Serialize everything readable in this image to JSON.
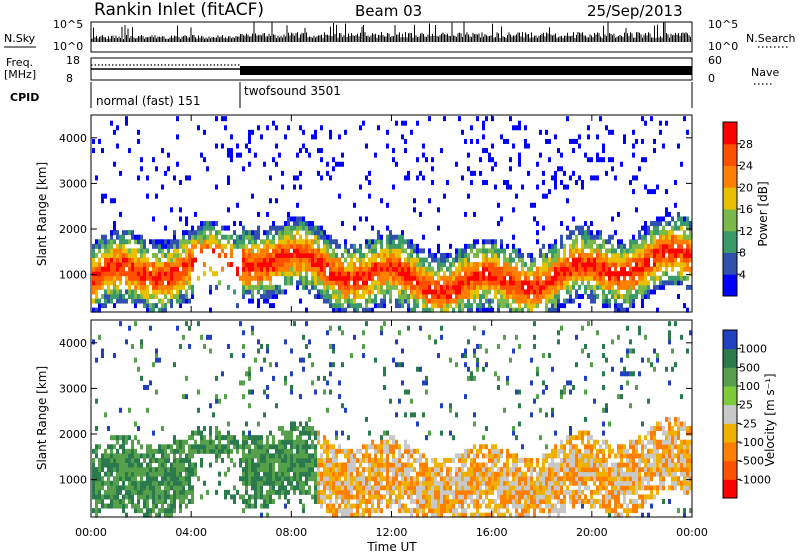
{
  "header": {
    "title": "Rankin Inlet (fitACF)",
    "beam": "Beam 03",
    "date": "25/Sep/2013"
  },
  "top_panels": {
    "nsky_label": "N.Sky",
    "nsky_ticks": [
      "10^5",
      "10^0"
    ],
    "nsearch_label": "N.Search",
    "freq_label_1": "Freq.",
    "freq_label_2": "[MHz]",
    "freq_ticks": [
      "18",
      "8"
    ],
    "nave_label": "Nave",
    "nave_ticks": [
      "60",
      "0"
    ],
    "cpid_label": "CPID",
    "cpid_modes": [
      {
        "label": "normal (fast) 151",
        "start_hour": 0,
        "end_hour": 6
      },
      {
        "label": "twofsound 3501",
        "start_hour": 6,
        "end_hour": 24
      }
    ]
  },
  "colors": {
    "power": [
      "#0000ff",
      "#3050b0",
      "#3a9a6a",
      "#7ab84a",
      "#e8c000",
      "#ff8000",
      "#ff5000",
      "#ff0000"
    ],
    "velocity": [
      "#2040c0",
      "#2b7a4e",
      "#56a04b",
      "#7ecb3a",
      "#c8c8c8",
      "#f0b000",
      "#ff8000",
      "#ff5000",
      "#ff0000"
    ]
  },
  "chart_data": [
    {
      "type": "heatmap",
      "name": "power",
      "ylabel": "Slant Range [km]",
      "xlabel": "",
      "x_ticks": [
        "00:00",
        "04:00",
        "08:00",
        "12:00",
        "16:00",
        "20:00",
        "00:00"
      ],
      "xlim_hours": [
        0,
        24
      ],
      "ylim": [
        180,
        4500
      ],
      "y_ticks": [
        1000,
        2000,
        3000,
        4000
      ],
      "colorbar_label": "Power [dB]",
      "colorbar_ticks": [
        "4",
        "8",
        "12",
        "16",
        "20",
        "24",
        "28"
      ]
    },
    {
      "type": "heatmap",
      "name": "velocity",
      "ylabel": "Slant Range [km]",
      "xlabel": "Time UT",
      "x_ticks": [
        "00:00",
        "04:00",
        "08:00",
        "12:00",
        "16:00",
        "20:00",
        "00:00"
      ],
      "xlim_hours": [
        0,
        24
      ],
      "ylim": [
        180,
        4500
      ],
      "y_ticks": [
        1000,
        2000,
        3000,
        4000
      ],
      "colorbar_label": "Velocity [m s⁻¹]",
      "colorbar_ticks": [
        "1000",
        "500",
        "100",
        "25",
        "-25",
        "-100",
        "-500",
        "-1000"
      ]
    }
  ]
}
